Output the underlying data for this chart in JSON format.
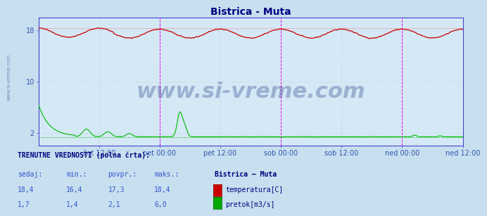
{
  "title": "Bistrica - Muta",
  "title_color": "#000080",
  "fig_bg_color": "#c8dff0",
  "plot_bg_color": "#d4e8f5",
  "xlim": [
    0,
    336
  ],
  "ylim": [
    0,
    20
  ],
  "x_tick_positions": [
    48,
    96,
    144,
    192,
    240,
    288,
    336
  ],
  "x_tick_labels": [
    "čet 12:00",
    "pet 00:00",
    "pet 12:00",
    "sob 00:00",
    "sob 12:00",
    "ned 00:00",
    "ned 12:00"
  ],
  "ytick_positions": [
    2,
    10,
    18
  ],
  "ytick_labels": [
    "2",
    "10",
    "18"
  ],
  "grid_color": "#b8ccd8",
  "vline_positions": [
    96,
    192,
    288
  ],
  "vline_color": "#ee00ee",
  "hline_max_temp": 18.4,
  "hline_min_flow": 1.4,
  "hline_color_temp": "#ff6666",
  "hline_color_flow": "#00cc00",
  "temp_color": "#cc0000",
  "flow_color": "#00bb00",
  "watermark_text": "www.si-vreme.com",
  "watermark_color": "#1a3080",
  "watermark_alpha": 0.3,
  "watermark_fontsize": 22,
  "sidebar_text": "www.si-vreme.com",
  "sidebar_color": "#5577aa",
  "sidebar_fontsize": 5,
  "axis_spine_color": "#4444cc",
  "tick_color": "#3355aa",
  "tick_fontsize": 7,
  "bottom_title": "TRENUTNE VREDNOSTI (polna črta):",
  "bottom_headers": [
    "sedaj:",
    "min.:",
    "povpr.:",
    "maks.:"
  ],
  "bottom_station": "Bistrica – Muta",
  "bottom_temp_values": [
    "18,4",
    "16,4",
    "17,3",
    "18,4"
  ],
  "bottom_flow_values": [
    "1,7",
    "1,4",
    "2,1",
    "6,0"
  ],
  "bottom_color": "#3355cc",
  "bottom_header_color": "#3355cc",
  "bottom_label_color": "#000080",
  "bottom_title_color": "#000080",
  "bottom_fontsize": 7
}
